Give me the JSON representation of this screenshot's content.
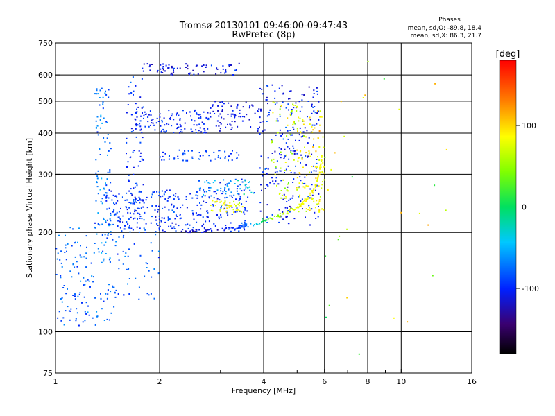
{
  "chart_data": {
    "type": "scatter",
    "title": "Tromsø 20130101 09:46:00-09:47:43",
    "subtitle": "RwPretec (8p)",
    "xlabel": "Frequency [MHz]",
    "ylabel": "Stationary phase Virtual Height [km]",
    "x_scale": "log",
    "y_scale": "log",
    "xlim": [
      1,
      16
    ],
    "ylim": [
      75,
      750
    ],
    "x_ticks": [
      {
        "value": 1,
        "label": "1"
      },
      {
        "value": 2,
        "label": "2"
      },
      {
        "value": 4,
        "label": "4"
      },
      {
        "value": 6,
        "label": "6"
      },
      {
        "value": 8,
        "label": "8"
      },
      {
        "value": 10,
        "label": "10"
      },
      {
        "value": 16,
        "label": "16"
      }
    ],
    "x_grid": [
      2,
      4,
      6,
      8,
      10
    ],
    "x_minor_ticks": [
      3,
      5,
      7,
      9
    ],
    "y_ticks": [
      {
        "value": 75,
        "label": "75"
      },
      {
        "value": 100,
        "label": "100"
      },
      {
        "value": 200,
        "label": "200"
      },
      {
        "value": 300,
        "label": "300"
      },
      {
        "value": 400,
        "label": "400"
      },
      {
        "value": 500,
        "label": "500"
      },
      {
        "value": 600,
        "label": "600"
      },
      {
        "value": 750,
        "label": "750"
      }
    ],
    "y_grid": [
      100,
      200,
      300,
      400,
      500,
      600
    ],
    "grid": true,
    "colorbar": {
      "label": "[deg]",
      "min": -180,
      "max": 180,
      "ticks": [
        {
          "value": 100,
          "label": "100"
        },
        {
          "value": 0,
          "label": "0"
        },
        {
          "value": -100,
          "label": "-100"
        }
      ]
    },
    "phase_stats": {
      "title": "Phases",
      "line_o": "mean, sd,O: -89.8, 18.4",
      "line_x": "mean, sd,X: 86.3, 21.7"
    },
    "traces": [
      {
        "fmin": 1.0,
        "fmax": 1.5,
        "hmin": 104,
        "hmax": 140,
        "phase_mean": -80,
        "phase_sd": 15,
        "count": 70
      },
      {
        "fmin": 1.0,
        "fmax": 1.3,
        "hmin": 140,
        "hmax": 210,
        "phase_mean": -75,
        "phase_sd": 18,
        "count": 55
      },
      {
        "fmin": 1.3,
        "fmax": 1.45,
        "hmin": 160,
        "hmax": 570,
        "phase_mean": -70,
        "phase_sd": 20,
        "count": 110
      },
      {
        "fmin": 1.45,
        "fmax": 2.0,
        "hmin": 125,
        "hmax": 200,
        "phase_mean": -80,
        "phase_sd": 15,
        "count": 45
      },
      {
        "fmin": 1.4,
        "fmax": 3.6,
        "hmin": 200,
        "hmax": 270,
        "phase_mean": -95,
        "phase_sd": 15,
        "count": 320
      },
      {
        "fmin": 1.6,
        "fmax": 1.8,
        "hmin": 200,
        "hmax": 600,
        "phase_mean": -95,
        "phase_sd": 15,
        "count": 80
      },
      {
        "fmin": 1.7,
        "fmax": 2.8,
        "hmin": 400,
        "hmax": 470,
        "phase_mean": -100,
        "phase_sd": 12,
        "count": 120
      },
      {
        "fmin": 2.8,
        "fmax": 4.0,
        "hmin": 405,
        "hmax": 500,
        "phase_mean": -110,
        "phase_sd": 12,
        "count": 80
      },
      {
        "fmin": 2.0,
        "fmax": 3.4,
        "hmin": 330,
        "hmax": 355,
        "phase_mean": -90,
        "phase_sd": 12,
        "count": 60
      },
      {
        "fmin": 1.75,
        "fmax": 3.4,
        "hmin": 600,
        "hmax": 650,
        "phase_mean": -110,
        "phase_sd": 15,
        "count": 70
      },
      {
        "fmin": 3.9,
        "fmax": 5.8,
        "hmin": 210,
        "hmax": 560,
        "phase_mean": -100,
        "phase_sd": 20,
        "count": 240
      },
      {
        "fmin": 2.6,
        "fmax": 3.8,
        "hmin": 260,
        "hmax": 290,
        "phase_mean": -60,
        "phase_sd": 35,
        "count": 60
      },
      {
        "fmin": 2.8,
        "fmax": 3.5,
        "hmin": 230,
        "hmax": 250,
        "phase_mean": 80,
        "phase_sd": 20,
        "count": 40
      },
      {
        "fmin": 5.0,
        "fmax": 6.0,
        "hmin": 230,
        "hmax": 470,
        "phase_mean": 85,
        "phase_sd": 20,
        "count": 110
      },
      {
        "fmin": 4.2,
        "fmax": 5.0,
        "hmin": 250,
        "hmax": 500,
        "phase_mean": 70,
        "phase_sd": 25,
        "count": 60
      },
      {
        "fmin": 6.0,
        "fmax": 15.0,
        "hmin": 80,
        "hmax": 660,
        "phase_mean": 60,
        "phase_sd": 60,
        "count": 30
      }
    ],
    "o_trace_curve": {
      "f": [
        2.3,
        2.6,
        3.0,
        3.4,
        3.8,
        4.2,
        4.6,
        5.0,
        5.3,
        5.6,
        5.8,
        5.9
      ],
      "h": [
        201,
        202,
        204,
        208,
        213,
        220,
        228,
        238,
        250,
        270,
        300,
        340
      ],
      "phase": [
        -120,
        -115,
        -110,
        -95,
        -40,
        40,
        70,
        80,
        85,
        85,
        85,
        85
      ]
    }
  }
}
